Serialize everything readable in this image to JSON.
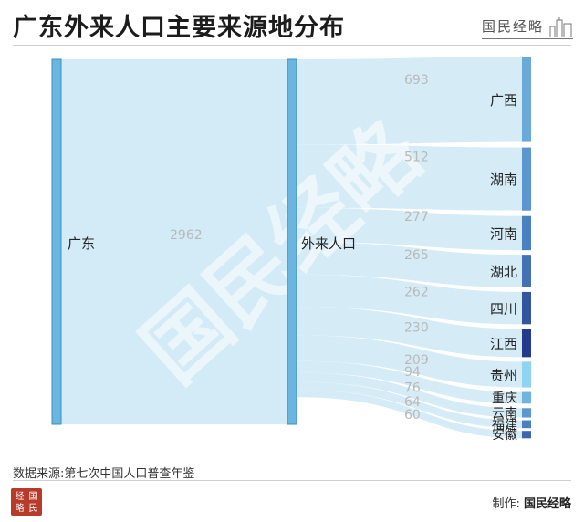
{
  "header": {
    "title": "广东外来人口主要来源地分布",
    "brand_text": "国民经略"
  },
  "watermark": "国民经略",
  "footer": {
    "source": "数据来源:第七次中国人口普查年鉴",
    "credit_label": "制作:",
    "credit_name": "国民经略",
    "logo_chars": [
      "经",
      "国",
      "略",
      "民"
    ]
  },
  "colors": {
    "node": "#6ab6e0",
    "node_border": "#3f8fbf",
    "flow_main": "#d3ebf7",
    "text": "#222222",
    "value_text": "#b9b9b9"
  },
  "chart_data": {
    "type": "sankey",
    "title": "广东外来人口主要来源地分布",
    "nodes": [
      "广东",
      "外来人口",
      "广西",
      "湖南",
      "河南",
      "湖北",
      "四川",
      "江西",
      "贵州",
      "重庆",
      "云南",
      "福建",
      "安徽"
    ],
    "links": [
      {
        "source": "广东",
        "target": "外来人口",
        "value": 2962
      },
      {
        "source": "外来人口",
        "target": "广西",
        "value": 693,
        "color": "#6aaad8"
      },
      {
        "source": "外来人口",
        "target": "湖南",
        "value": 512,
        "color": "#5c96cf"
      },
      {
        "source": "外来人口",
        "target": "河南",
        "value": 277,
        "color": "#4a80c2"
      },
      {
        "source": "外来人口",
        "target": "湖北",
        "value": 265,
        "color": "#4470b6"
      },
      {
        "source": "外来人口",
        "target": "四川",
        "value": 262,
        "color": "#33549f"
      },
      {
        "source": "外来人口",
        "target": "江西",
        "value": 230,
        "color": "#233b8c"
      },
      {
        "source": "外来人口",
        "target": "贵州",
        "value": 209,
        "color": "#8fd4f2"
      },
      {
        "source": "外来人口",
        "target": "重庆",
        "value": 94,
        "color": "#6fb4e0"
      },
      {
        "source": "外来人口",
        "target": "云南",
        "value": 76,
        "color": "#5b98cf"
      },
      {
        "source": "外来人口",
        "target": "福建",
        "value": 64,
        "color": "#4b7fc1"
      },
      {
        "source": "外来人口",
        "target": "安徽",
        "value": 60,
        "color": "#3d66ad"
      }
    ]
  }
}
